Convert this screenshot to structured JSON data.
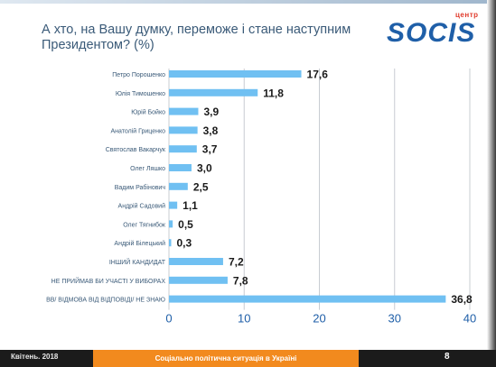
{
  "header": {
    "title": "А хто, на Вашу думку, переможе і стане наступним Президентом? (%)",
    "logo_small": "центр",
    "logo_text": "SOCIS"
  },
  "footer": {
    "date": "Квітень. 2018",
    "center": "Соціально політична ситуація в Україні",
    "page": "8"
  },
  "colors": {
    "bar": "#70c0f2",
    "title": "#3a5a78",
    "category_label": "#3a5a78",
    "value_label": "#1a1a1a",
    "axis_tick": "#1f5fa8",
    "grid": "#c8ccd2",
    "footer_center": "#f28a1e"
  },
  "chart_data": {
    "type": "bar",
    "orientation": "horizontal",
    "categories": [
      "Петро Порошенко",
      "Юлія Тимошенко",
      "Юрій Бойко",
      "Анатолій Гриценко",
      "Святослав Вакарчук",
      "Олег Ляшко",
      "Вадим Рабінович",
      "Андрій Садовий",
      "Олег Тягнибок",
      "Андрій Білецький",
      "ІНШИЙ КАНДИДАТ",
      "НЕ ПРИЙМАВ БИ УЧАСТІ У ВИБОРАХ",
      "ВВ/ ВІДМОВА ВІД ВІДПОВІДІ/ НЕ ЗНАЮ"
    ],
    "values": [
      17.6,
      11.8,
      3.9,
      3.8,
      3.7,
      3.0,
      2.5,
      1.1,
      0.5,
      0.3,
      7.2,
      7.8,
      36.8
    ],
    "value_labels": [
      "17,6",
      "11,8",
      "3,9",
      "3,8",
      "3,7",
      "3,0",
      "2,5",
      "1,1",
      "0,5",
      "0,3",
      "7,2",
      "7,8",
      "36,8"
    ],
    "xlim": [
      0,
      40
    ],
    "x_ticks": [
      0,
      10,
      20,
      30,
      40
    ],
    "x_tick_labels": [
      "0",
      "10",
      "20",
      "30",
      "40"
    ],
    "grid": true
  }
}
